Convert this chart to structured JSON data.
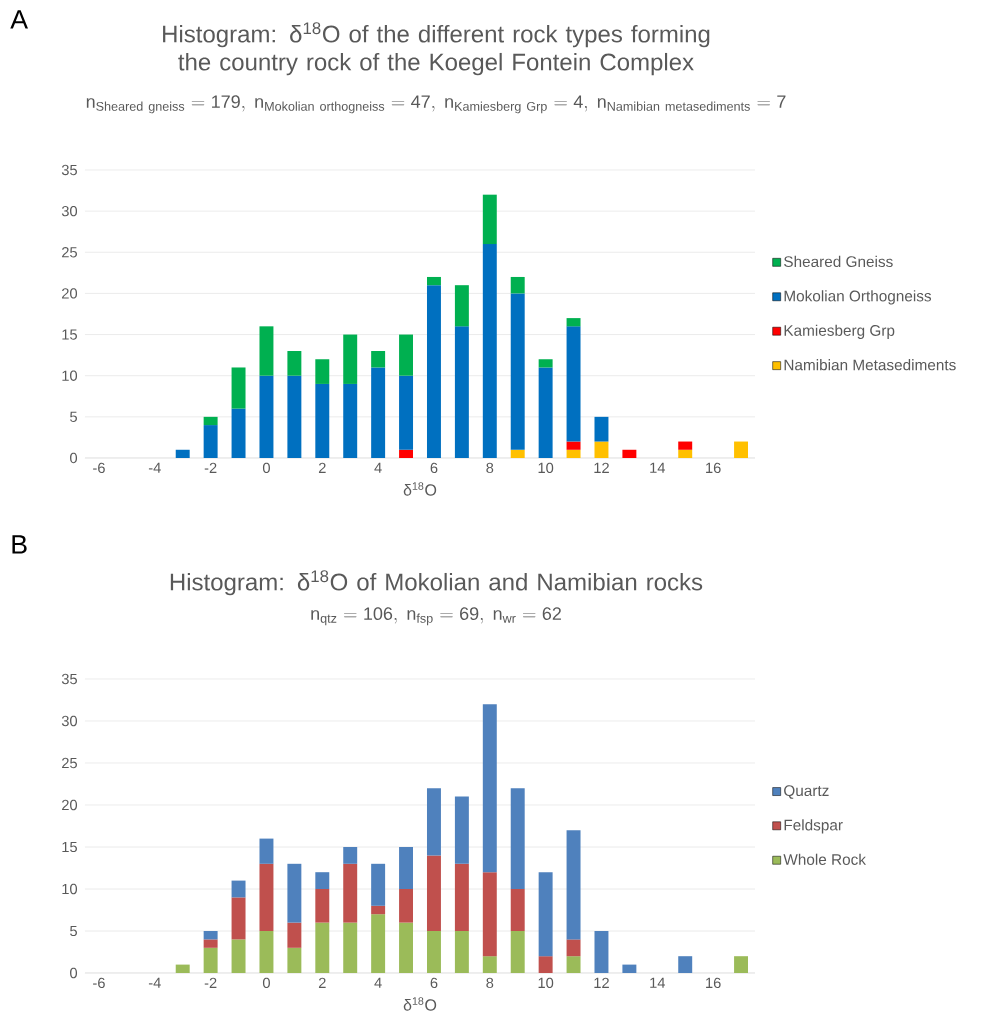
{
  "chart_data": [
    {
      "type": "bar",
      "stacked": true,
      "title": "Histogram: δ$^{18}$O of the different rock types forming the country rock of the Koegel Fontein Complex",
      "subtitle": "\\mathrm{n_{Sheared\\ gneiss}=179,\\ n_{Mokolian\\ orthogneiss}=47,\\ n_{Kamiesberg\\ Grp}=4,\\ n_{Namibian\\ metasediments}=7}",
      "xlabel": "δ$^{18}$O",
      "annotations": [
        "A"
      ],
      "categories": [
        "-6",
        null,
        "-4",
        null,
        "-2",
        null,
        "0",
        null,
        "2",
        null,
        "4",
        null,
        "6",
        null,
        "8",
        null,
        "10",
        null,
        "12",
        null,
        "14",
        null,
        "16",
        null
      ],
      "ylim": [
        0,
        35
      ],
      "yticks": [
        0,
        5,
        10,
        15,
        20,
        25,
        30,
        35
      ],
      "grid": "y",
      "legend": "right",
      "series": [
        {
          "name": "Namibian Metasediments",
          "color": "#ffc000",
          "values": [
            null,
            null,
            null,
            null,
            null,
            null,
            null,
            null,
            null,
            null,
            null,
            null,
            null,
            null,
            null,
            1,
            null,
            1,
            2,
            null,
            null,
            1,
            null,
            2
          ]
        },
        {
          "name": "Kamiesberg Grp",
          "color": "#ff0000",
          "values": [
            null,
            null,
            null,
            null,
            null,
            null,
            null,
            null,
            null,
            null,
            null,
            1,
            null,
            null,
            null,
            null,
            null,
            1,
            null,
            1,
            null,
            1,
            null,
            null
          ]
        },
        {
          "name": "Mokolian Orthogneiss",
          "color": "#0070c0",
          "values": [
            null,
            null,
            null,
            1,
            4,
            6,
            10,
            10,
            9,
            9,
            11,
            9,
            21,
            16,
            26,
            19,
            11,
            14,
            3,
            null,
            null,
            null,
            null,
            null
          ]
        },
        {
          "name": "Sheared Gneiss",
          "color": "#00b050",
          "values": [
            null,
            null,
            null,
            null,
            1,
            5,
            6,
            3,
            3,
            6,
            2,
            5,
            1,
            5,
            6,
            2,
            1,
            1,
            null,
            null,
            null,
            null,
            null,
            null
          ]
        }
      ]
    },
    {
      "type": "bar",
      "stacked": true,
      "title": "Histogram: δ$^{18}$O of Mokolian and Namibian rocks",
      "subtitle": "\\mathrm{n_{qtz}=106,\\ n_{fsp}=69,\\ n_{wr}=62}",
      "xlabel": "δ$^{18}$O",
      "annotations": [
        "B"
      ],
      "categories": [
        "-6",
        null,
        "-4",
        null,
        "-2",
        null,
        "0",
        null,
        "2",
        null,
        "4",
        null,
        "6",
        null,
        "8",
        null,
        "10",
        null,
        "12",
        null,
        "14",
        null,
        "16",
        null
      ],
      "ylim": [
        0,
        35
      ],
      "yticks": [
        0,
        5,
        10,
        15,
        20,
        25,
        30,
        35
      ],
      "grid": "y",
      "legend": "right",
      "series": [
        {
          "name": "Whole Rock",
          "color": "#9bbb59",
          "values": [
            null,
            null,
            null,
            1,
            3,
            4,
            5,
            3,
            6,
            6,
            7,
            6,
            5,
            5,
            2,
            5,
            null,
            2,
            null,
            null,
            null,
            null,
            null,
            2
          ]
        },
        {
          "name": "Feldspar",
          "color": "#c0504d",
          "values": [
            null,
            null,
            null,
            null,
            1,
            5,
            8,
            3,
            4,
            7,
            1,
            4,
            9,
            8,
            10,
            5,
            2,
            2,
            null,
            null,
            null,
            null,
            null,
            null
          ]
        },
        {
          "name": "Quartz",
          "color": "#4f81bd",
          "values": [
            null,
            null,
            null,
            null,
            1,
            2,
            3,
            7,
            2,
            2,
            5,
            5,
            8,
            8,
            20,
            12,
            10,
            13,
            5,
            1,
            null,
            2,
            null,
            null
          ]
        }
      ]
    }
  ]
}
